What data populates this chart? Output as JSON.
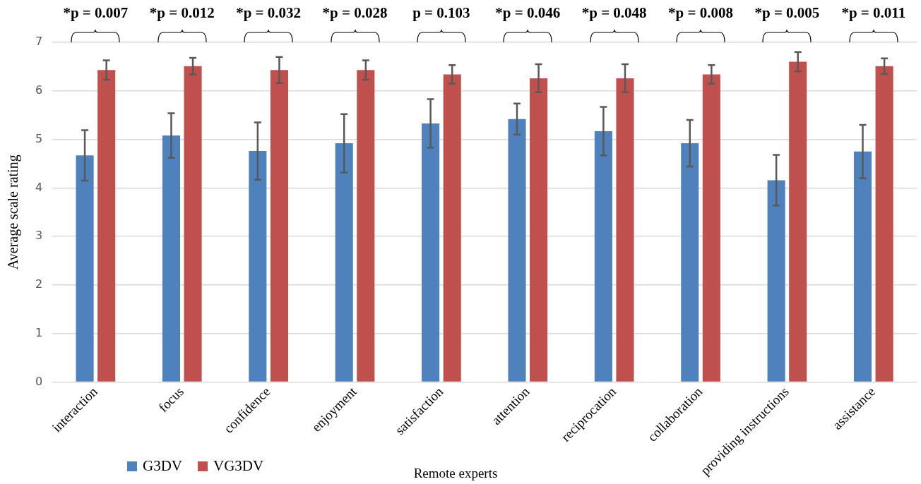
{
  "chart_data": {
    "type": "bar",
    "ylabel": "Average scale rating",
    "xlabel": "Remote experts",
    "categories": [
      "interaction",
      "focus",
      "confidence",
      "enjoyment",
      "satisfaction",
      "attention",
      "reciprocation",
      "collaboration",
      "providing instructions",
      "assistance"
    ],
    "series": [
      {
        "name": "G3DV",
        "color": "#4f81bd",
        "values": [
          4.67,
          5.08,
          4.76,
          4.92,
          5.33,
          5.42,
          5.17,
          4.92,
          4.16,
          4.75
        ],
        "errors": [
          0.52,
          0.46,
          0.59,
          0.6,
          0.5,
          0.32,
          0.5,
          0.48,
          0.52,
          0.55
        ]
      },
      {
        "name": "VG3DV",
        "color": "#c0504d",
        "values": [
          6.43,
          6.51,
          6.43,
          6.43,
          6.34,
          6.26,
          6.26,
          6.34,
          6.6,
          6.51
        ],
        "errors": [
          0.2,
          0.17,
          0.27,
          0.2,
          0.19,
          0.29,
          0.29,
          0.19,
          0.2,
          0.16
        ]
      }
    ],
    "annotations": [
      "*p = 0.007",
      "*p = 0.012",
      "*p = 0.032",
      "*p = 0.028",
      "p = 0.103",
      "*p = 0.046",
      "*p = 0.048",
      "*p = 0.008",
      "*p = 0.005",
      "*p = 0.011"
    ],
    "ylim": [
      0,
      7
    ],
    "yticks": [
      0,
      1,
      2,
      3,
      4,
      5,
      6,
      7
    ],
    "grid": "y",
    "legend": "bottom left"
  }
}
